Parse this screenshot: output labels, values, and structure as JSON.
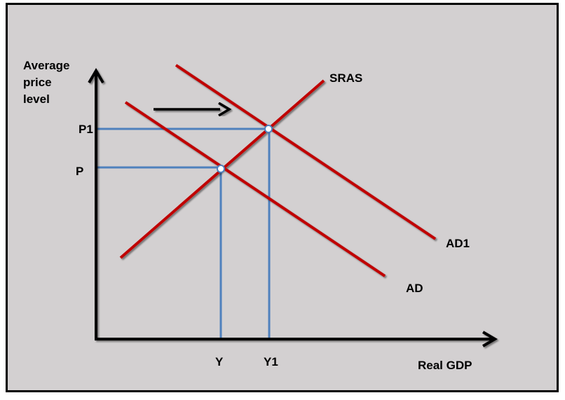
{
  "diagram": {
    "y_axis_label": [
      "Average",
      "price",
      "level"
    ],
    "x_axis_label": "Real GDP",
    "curves": {
      "sras": "SRAS",
      "ad": "AD",
      "ad1": "AD1"
    },
    "price_ticks": {
      "p": "P",
      "p1": "P1"
    },
    "output_ticks": {
      "y": "Y",
      "y1": "Y1"
    },
    "colors": {
      "curve": "#c00000",
      "guide": "#4f81bd",
      "axis": "#000000",
      "background": "#d3d0d1"
    }
  }
}
